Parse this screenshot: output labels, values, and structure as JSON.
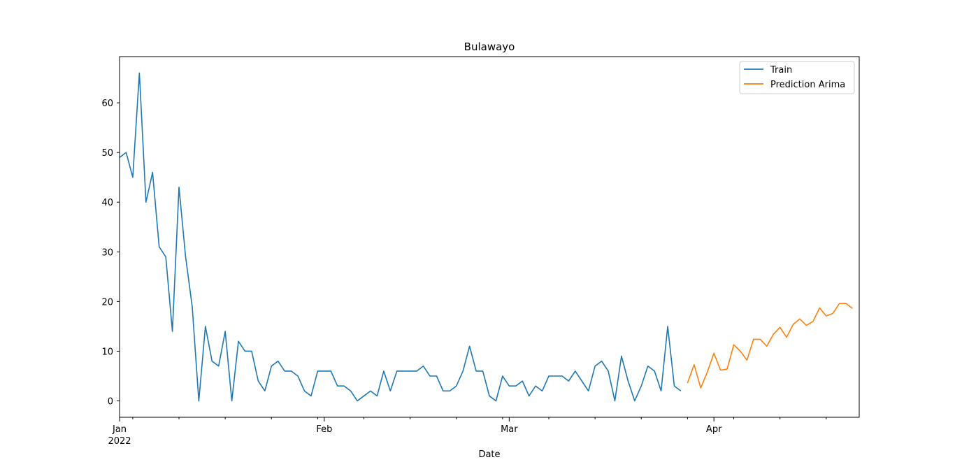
{
  "chart_data": {
    "type": "line",
    "title": "Bulawayo",
    "xlabel": "Date",
    "ylabel": "",
    "x_range": [
      "2022-01-01",
      "2022-04-23"
    ],
    "ylim": [
      -3.3,
      69.3
    ],
    "grid": false,
    "legend_position": "top-right",
    "x_ticks": [
      {
        "date": "2022-01-01",
        "label": "Jan",
        "sublabel": "2022"
      },
      {
        "date": "2022-02-01",
        "label": "Feb",
        "sublabel": ""
      },
      {
        "date": "2022-03-01",
        "label": "Mar",
        "sublabel": ""
      },
      {
        "date": "2022-04-01",
        "label": "Apr",
        "sublabel": ""
      }
    ],
    "y_ticks": [
      0,
      10,
      20,
      30,
      40,
      50,
      60
    ],
    "series": [
      {
        "name": "Train",
        "color": "#1f77b4",
        "start": "2022-01-01",
        "values": [
          49,
          50,
          45,
          66,
          40,
          46,
          31,
          29,
          14,
          43,
          29,
          19,
          0,
          15,
          8,
          7,
          14,
          0,
          12,
          10,
          10,
          4,
          2,
          7,
          8,
          6,
          6,
          5,
          2,
          1,
          6,
          6,
          6,
          3,
          3,
          2,
          0,
          1,
          2,
          1,
          6,
          2,
          6,
          6,
          6,
          6,
          7,
          5,
          5,
          2,
          2,
          3,
          6,
          11,
          6,
          6,
          1,
          0,
          5,
          3,
          3,
          4,
          1,
          3,
          2,
          5,
          5,
          5,
          4,
          6,
          4,
          2,
          7,
          8,
          6,
          0,
          9,
          4,
          0,
          3,
          7,
          6,
          2,
          15,
          3,
          2
        ]
      },
      {
        "name": "Prediction Arima",
        "color": "#ff7f0e",
        "start": "2022-03-28",
        "values": [
          3.6,
          7.3,
          2.6,
          5.8,
          9.6,
          6.2,
          6.4,
          11.3,
          10.0,
          8.2,
          12.4,
          12.4,
          11.0,
          13.4,
          14.8,
          12.8,
          15.4,
          16.5,
          15.2,
          16.0,
          18.7,
          17.1,
          17.6,
          19.6,
          19.6,
          18.6
        ]
      }
    ]
  }
}
